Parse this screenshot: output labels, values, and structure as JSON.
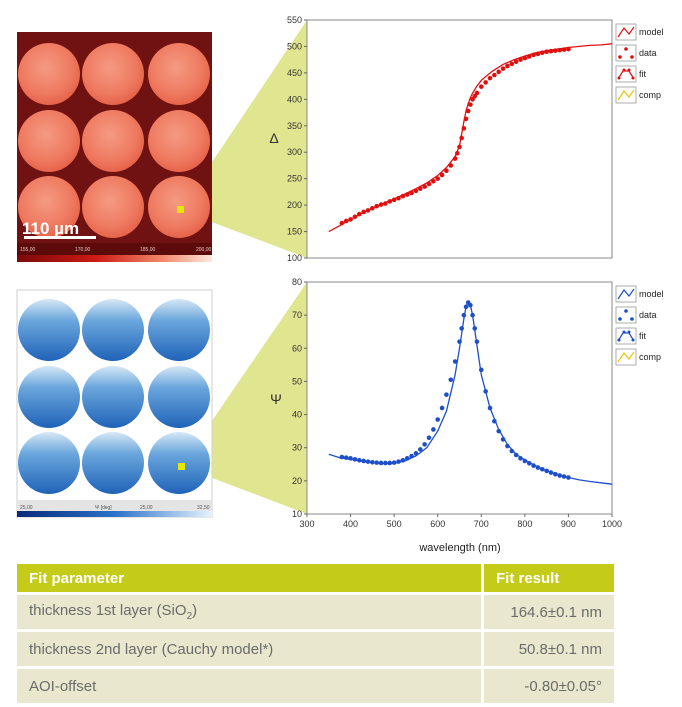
{
  "colors": {
    "delta_series": "#e01010",
    "psi_series": "#1d4fc9",
    "comp_legend": "#e8c800",
    "callout": "#d6dc6a",
    "table_header": "#c4cc19",
    "table_row": "#e9e8cf"
  },
  "images": {
    "top": {
      "kind": "ellipsometric delta map, 3x3 circular pads, red color scale",
      "scale_bar_label": "110 µm",
      "colorbar_ticks": [
        "155,00",
        "170,00",
        "185,00",
        "200,00"
      ]
    },
    "bottom": {
      "kind": "ellipsometric psi map, 3x3 circular pads, blue color scale",
      "colorbar_ticks": [
        "25,00",
        "Ψ [deg]",
        "25,00",
        "32,50"
      ]
    }
  },
  "chart_data": [
    {
      "type": "line",
      "ylabel": "Δ",
      "xlabel": "",
      "xlim": [
        300,
        1000
      ],
      "ylim": [
        100,
        550
      ],
      "yticks": [
        100,
        150,
        200,
        250,
        300,
        350,
        400,
        450,
        500,
        550
      ],
      "xticks": [],
      "legend": [
        "model",
        "data",
        "fit",
        "comp"
      ],
      "legend_position": "right",
      "series": [
        {
          "name": "model",
          "x": [
            350,
            375,
            400,
            425,
            450,
            475,
            500,
            525,
            550,
            575,
            600,
            620,
            640,
            650,
            655,
            660,
            665,
            670,
            675,
            680,
            690,
            700,
            725,
            750,
            775,
            800,
            825,
            850,
            875,
            900,
            925,
            950,
            975,
            1000
          ],
          "y": [
            150,
            161,
            173,
            184,
            194,
            203,
            212,
            221,
            231,
            242,
            256,
            271,
            292,
            312,
            335,
            358,
            378,
            392,
            403,
            412,
            425,
            436,
            453,
            466,
            475,
            482,
            488,
            492,
            495,
            498,
            500,
            502,
            503,
            505
          ]
        },
        {
          "name": "data",
          "x": [
            380,
            390,
            400,
            410,
            420,
            430,
            440,
            450,
            460,
            470,
            480,
            490,
            500,
            510,
            520,
            530,
            540,
            550,
            560,
            570,
            580,
            590,
            600,
            610,
            620,
            630,
            640,
            645,
            650,
            655,
            660,
            665,
            670,
            675,
            680,
            685,
            690,
            700,
            710,
            720,
            730,
            740,
            750,
            760,
            770,
            780,
            790,
            800,
            810,
            820,
            830,
            840,
            850,
            860,
            870,
            880,
            890,
            900
          ],
          "y": [
            166,
            170,
            173,
            178,
            183,
            187,
            190,
            194,
            198,
            201,
            203,
            207,
            210,
            213,
            217,
            220,
            223,
            227,
            231,
            235,
            240,
            245,
            250,
            257,
            265,
            275,
            288,
            298,
            310,
            327,
            345,
            363,
            378,
            390,
            400,
            406,
            412,
            424,
            432,
            440,
            446,
            452,
            458,
            463,
            467,
            471,
            475,
            478,
            481,
            484,
            486,
            488,
            490,
            491,
            492,
            493,
            494,
            495
          ]
        }
      ]
    },
    {
      "type": "line",
      "ylabel": "Ψ",
      "xlabel": "wavelength (nm)",
      "xlim": [
        300,
        1000
      ],
      "ylim": [
        10,
        80
      ],
      "yticks": [
        10,
        20,
        30,
        40,
        50,
        60,
        70,
        80
      ],
      "xticks": [
        300,
        400,
        500,
        600,
        700,
        800,
        900,
        1000
      ],
      "legend": [
        "model",
        "data",
        "fit",
        "comp"
      ],
      "legend_position": "right",
      "series": [
        {
          "name": "model",
          "x": [
            350,
            375,
            400,
            425,
            450,
            475,
            500,
            525,
            550,
            575,
            600,
            620,
            640,
            650,
            660,
            665,
            670,
            675,
            680,
            690,
            700,
            720,
            740,
            760,
            780,
            800,
            825,
            850,
            875,
            900,
            925,
            950,
            975,
            1000
          ],
          "y": [
            28,
            27,
            26.5,
            26,
            25.5,
            25.2,
            25.3,
            26,
            27.5,
            30,
            35,
            41,
            52,
            60,
            69,
            72.5,
            74,
            73,
            70,
            61,
            52,
            42,
            35.5,
            31,
            28,
            26.3,
            24.5,
            23,
            22,
            21,
            20.3,
            19.8,
            19.4,
            19
          ]
        },
        {
          "name": "data",
          "x": [
            380,
            390,
            400,
            410,
            420,
            430,
            440,
            450,
            460,
            470,
            480,
            490,
            500,
            510,
            520,
            530,
            540,
            550,
            560,
            570,
            580,
            590,
            600,
            610,
            620,
            630,
            640,
            650,
            655,
            660,
            665,
            670,
            675,
            680,
            685,
            690,
            700,
            710,
            720,
            730,
            740,
            750,
            760,
            770,
            780,
            790,
            800,
            810,
            820,
            830,
            840,
            850,
            860,
            870,
            880,
            890,
            900
          ],
          "y": [
            27.2,
            27,
            26.8,
            26.5,
            26.2,
            26,
            25.8,
            25.6,
            25.5,
            25.4,
            25.4,
            25.4,
            25.5,
            25.8,
            26.2,
            26.8,
            27.5,
            28.3,
            29.5,
            31,
            33,
            35.5,
            38.5,
            42,
            46,
            50.5,
            56,
            62,
            66,
            70,
            72.5,
            73.8,
            73,
            70,
            66,
            62,
            53.5,
            47,
            42,
            38,
            35,
            32.5,
            30.5,
            29,
            27.8,
            26.8,
            26,
            25.3,
            24.6,
            24,
            23.5,
            23,
            22.5,
            22,
            21.6,
            21.3,
            21
          ]
        }
      ]
    }
  ],
  "table": {
    "header": {
      "param": "Fit parameter",
      "result": "Fit result"
    },
    "rows": [
      {
        "param": "thickness 1st layer (SiO",
        "param_sub": "2",
        "param_tail": ")",
        "result": "164.6±0.1 nm"
      },
      {
        "param": "thickness 2nd layer (Cauchy model*)",
        "param_sub": "",
        "param_tail": "",
        "result": "50.8±0.1 nm"
      },
      {
        "param": "AOI-offset",
        "param_sub": "",
        "param_tail": "",
        "result": "-0.80±0.05°"
      }
    ]
  }
}
